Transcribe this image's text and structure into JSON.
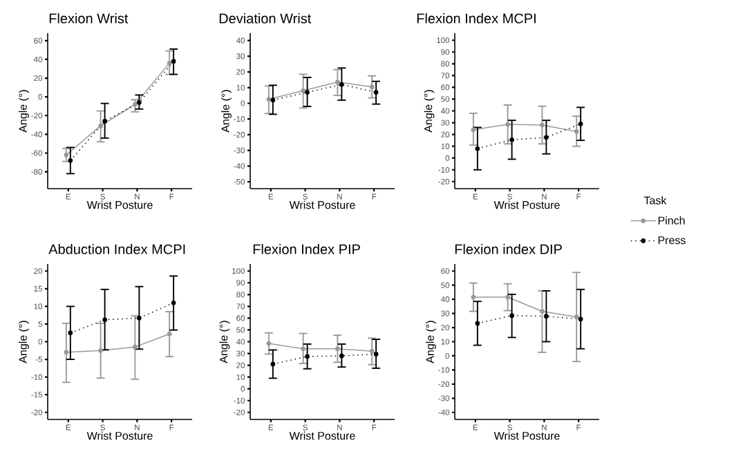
{
  "chart_data": [
    {
      "type": "line",
      "title": "Flexion Wrist",
      "xlabel": "Wrist Posture",
      "ylabel": "Angle (°)",
      "categories": [
        "E",
        "S",
        "N",
        "F"
      ],
      "ylim": [
        -98,
        68
      ],
      "yticks": [
        -80,
        -60,
        -40,
        -20,
        0,
        20,
        40,
        60
      ],
      "marker": "circle",
      "series": [
        {
          "color": "#999999",
          "line_style": "solid",
          "values": [
            -62,
            -31,
            -8,
            36
          ],
          "errors": [
            [
              -69,
              -55
            ],
            [
              -48,
              -15
            ],
            [
              -16,
              -3
            ],
            [
              24,
              49
            ]
          ]
        },
        {
          "color": "#000000",
          "line_style": "dotted",
          "values": [
            -68,
            -26,
            -6,
            38
          ],
          "errors": [
            [
              -82,
              -54
            ],
            [
              -44,
              -7
            ],
            [
              -13,
              2
            ],
            [
              24,
              51
            ]
          ]
        }
      ]
    },
    {
      "type": "line",
      "title": "Deviation Wrist",
      "xlabel": "Wrist Posture",
      "ylabel": "Angle (°)",
      "categories": [
        "E",
        "S",
        "N",
        "F"
      ],
      "ylim": [
        -54.4,
        44.7
      ],
      "yticks": [
        -50,
        -40,
        -30,
        -20,
        -10,
        0,
        10,
        20,
        30,
        40
      ],
      "marker": "circle",
      "series": [
        {
          "color": "#999999",
          "line_style": "solid",
          "values": [
            2.5,
            8,
            13.5,
            10.5
          ],
          "errors": [
            [
              -6.5,
              11
            ],
            [
              -3,
              18.5
            ],
            [
              5,
              21.5
            ],
            [
              3.5,
              17.5
            ]
          ]
        },
        {
          "color": "#000000",
          "line_style": "dotted",
          "values": [
            2,
            7,
            12,
            7
          ],
          "errors": [
            [
              -7,
              11.5
            ],
            [
              -2,
              16.5
            ],
            [
              2,
              22.5
            ],
            [
              -0.5,
              14
            ]
          ]
        }
      ]
    },
    {
      "type": "line",
      "title": "Flexion Index MCPI",
      "xlabel": "Wrist Posture",
      "ylabel": "Angle (°)",
      "categories": [
        "E",
        "S",
        "N",
        "F"
      ],
      "ylim": [
        -26,
        106
      ],
      "yticks": [
        -20,
        -10,
        0,
        10,
        20,
        30,
        40,
        50,
        60,
        70,
        80,
        90,
        100
      ],
      "marker": "circle",
      "legend": "right",
      "legend_title": "Task",
      "series": [
        {
          "name": "Pinch",
          "color": "#999999",
          "line_style": "solid",
          "values": [
            24,
            28.5,
            28,
            22.5
          ],
          "errors": [
            [
              11,
              38
            ],
            [
              12,
              45
            ],
            [
              12,
              44
            ],
            [
              10,
              35.5
            ]
          ]
        },
        {
          "name": "Press",
          "color": "#000000",
          "line_style": "dotted",
          "values": [
            8,
            15.5,
            17.5,
            29
          ],
          "errors": [
            [
              -10,
              26
            ],
            [
              -1,
              32
            ],
            [
              3.5,
              32
            ],
            [
              15,
              43
            ]
          ]
        }
      ]
    },
    {
      "type": "line",
      "title": "Abduction Index MCPI",
      "xlabel": "Wrist Posture",
      "ylabel": "Angle (°)",
      "categories": [
        "E",
        "S",
        "N",
        "F"
      ],
      "ylim": [
        -22,
        22
      ],
      "yticks": [
        -20,
        -15,
        -10,
        -5,
        0,
        5,
        10,
        15,
        20
      ],
      "marker": "circle",
      "series": [
        {
          "color": "#999999",
          "line_style": "solid",
          "values": [
            -3,
            -2.5,
            -1.5,
            2.2
          ],
          "errors": [
            [
              -11.5,
              5.2
            ],
            [
              -10.3,
              5.2
            ],
            [
              -10.6,
              7.3
            ],
            [
              -4.2,
              8.5
            ]
          ]
        },
        {
          "color": "#000000",
          "line_style": "dotted",
          "values": [
            2.5,
            6.2,
            6.7,
            11
          ],
          "errors": [
            [
              -5,
              10
            ],
            [
              -2.3,
              14.8
            ],
            [
              -2.1,
              15.6
            ],
            [
              3.3,
              18.6
            ]
          ]
        }
      ]
    },
    {
      "type": "line",
      "title": "Flexion Index PIP",
      "xlabel": "Wrist Posture",
      "ylabel": "Angle (°)",
      "categories": [
        "E",
        "S",
        "N",
        "F"
      ],
      "ylim": [
        -26,
        106
      ],
      "yticks": [
        -20,
        -10,
        0,
        10,
        20,
        30,
        40,
        50,
        60,
        70,
        80,
        90,
        100
      ],
      "marker": "circle",
      "series": [
        {
          "color": "#999999",
          "line_style": "solid",
          "values": [
            38.5,
            34,
            34,
            32
          ],
          "errors": [
            [
              29.5,
              47.5
            ],
            [
              21.5,
              47
            ],
            [
              22.5,
              45.5
            ],
            [
              20.5,
              43
            ]
          ]
        },
        {
          "color": "#000000",
          "line_style": "dotted",
          "values": [
            21,
            27.5,
            28,
            29.5
          ],
          "errors": [
            [
              9,
              33
            ],
            [
              17,
              38
            ],
            [
              18.5,
              38
            ],
            [
              17.5,
              42
            ]
          ]
        }
      ]
    },
    {
      "type": "line",
      "title": "Flexion index DIP",
      "xlabel": "Wrist Posture",
      "ylabel": "Angle (°)",
      "categories": [
        "E",
        "S",
        "N",
        "F"
      ],
      "ylim": [
        -45,
        65
      ],
      "yticks": [
        -40,
        -30,
        -20,
        -10,
        0,
        10,
        20,
        30,
        40,
        50,
        60
      ],
      "marker": "circle",
      "series": [
        {
          "color": "#999999",
          "line_style": "solid",
          "values": [
            41.5,
            41.5,
            31.5,
            27.5
          ],
          "errors": [
            [
              31.5,
              51.5
            ],
            [
              32,
              51
            ],
            [
              2.5,
              46
            ],
            [
              -4,
              59
            ]
          ]
        },
        {
          "color": "#000000",
          "line_style": "dotted",
          "values": [
            23,
            28.5,
            28,
            26
          ],
          "errors": [
            [
              7.5,
              38.5
            ],
            [
              13,
              43.5
            ],
            [
              10,
              46
            ],
            [
              5,
              47
            ]
          ]
        }
      ]
    }
  ]
}
